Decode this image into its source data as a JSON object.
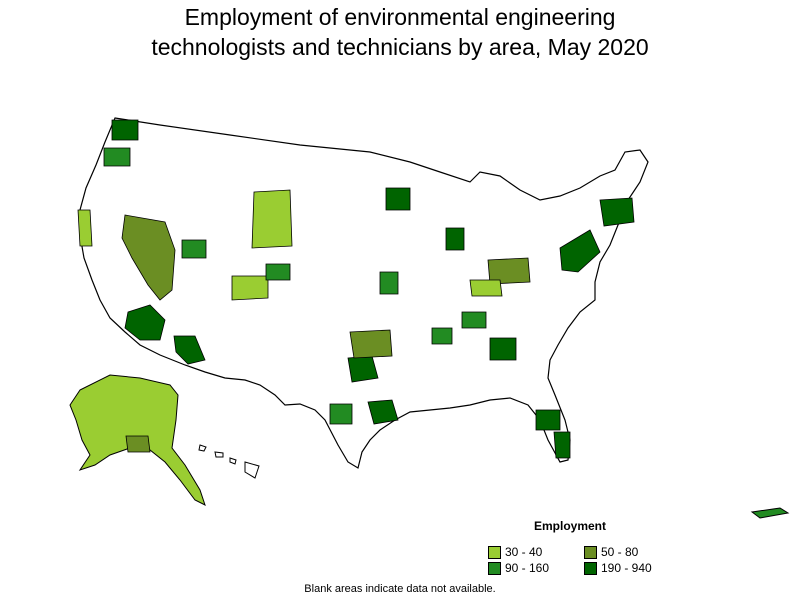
{
  "title_line1": "Employment of environmental engineering",
  "title_line2": "technologists and technicians by area, May 2020",
  "legend": {
    "title": "Employment",
    "items": [
      {
        "label": "30 - 40",
        "color": "#9acd32"
      },
      {
        "label": "50 - 80",
        "color": "#6b8e23"
      },
      {
        "label": "90 - 160",
        "color": "#228b22"
      },
      {
        "label": "190 - 940",
        "color": "#006400"
      }
    ]
  },
  "footnote": "Blank areas indicate data not available.",
  "colors": {
    "outline": "#000000",
    "blank": "#ffffff"
  }
}
